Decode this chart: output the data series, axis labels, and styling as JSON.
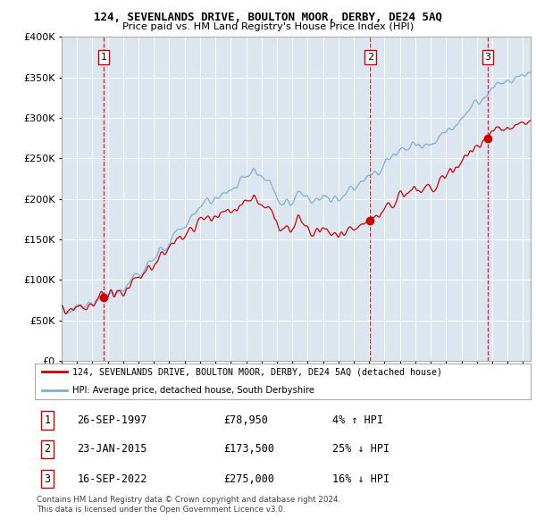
{
  "title": "124, SEVENLANDS DRIVE, BOULTON MOOR, DERBY, DE24 5AQ",
  "subtitle": "Price paid vs. HM Land Registry's House Price Index (HPI)",
  "legend_line1": "124, SEVENLANDS DRIVE, BOULTON MOOR, DERBY, DE24 5AQ (detached house)",
  "legend_line2": "HPI: Average price, detached house, South Derbyshire",
  "transactions": [
    {
      "num": 1,
      "date": "1997-09-26",
      "price": 78950,
      "t": 1997.73
    },
    {
      "num": 2,
      "date": "2015-01-23",
      "price": 173500,
      "t": 2015.06
    },
    {
      "num": 3,
      "date": "2022-09-16",
      "price": 275000,
      "t": 2022.71
    }
  ],
  "table_rows": [
    {
      "num": 1,
      "date": "26-SEP-1997",
      "price": "£78,950",
      "pct": "4%",
      "dir": "↑"
    },
    {
      "num": 2,
      "date": "23-JAN-2015",
      "price": "£173,500",
      "pct": "25%",
      "dir": "↓"
    },
    {
      "num": 3,
      "date": "16-SEP-2022",
      "price": "£275,000",
      "pct": "16%",
      "dir": "↓"
    }
  ],
  "footer1": "Contains HM Land Registry data © Crown copyright and database right 2024.",
  "footer2": "This data is licensed under the Open Government Licence v3.0.",
  "hpi_color": "#7bafd4",
  "price_color": "#cc0000",
  "vline_color": "#cc0000",
  "bg_color": "#dce6f1",
  "grid_color": "#ffffff",
  "ylim": [
    0,
    400000
  ],
  "yticks": [
    0,
    50000,
    100000,
    150000,
    200000,
    250000,
    300000,
    350000,
    400000
  ],
  "xstart": 1995.0,
  "xend": 2025.5,
  "seed": 42
}
